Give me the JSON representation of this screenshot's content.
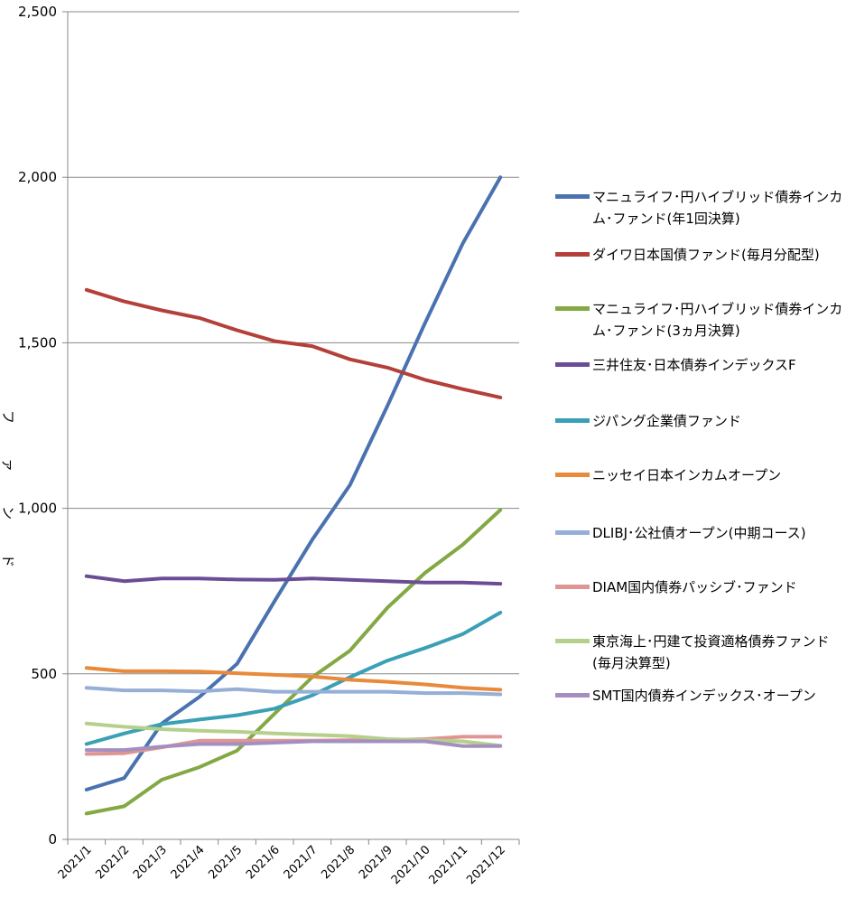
{
  "chart_data": {
    "type": "line",
    "title": "",
    "xlabel": "",
    "ylabel": "ファンド",
    "ylim": [
      0,
      2500
    ],
    "yticks": [
      0,
      500,
      1000,
      1500,
      2000,
      2500
    ],
    "ytick_labels": [
      "0",
      "500",
      "1,000",
      "1,500",
      "2,000",
      "2,500"
    ],
    "grid": "horizontal",
    "legend_position": "right",
    "categories": [
      "2021/1",
      "2021/2",
      "2021/3",
      "2021/4",
      "2021/5",
      "2021/6",
      "2021/7",
      "2021/8",
      "2021/9",
      "2021/10",
      "2021/11",
      "2021/12"
    ],
    "series": [
      {
        "name": "マニュライフ･円ハイブリッド債券インカム･ファンド(年1回決算)",
        "color": "#4a72b0",
        "values": [
          150,
          185,
          350,
          430,
          530,
          720,
          905,
          1070,
          1310,
          1560,
          1800,
          2000
        ]
      },
      {
        "name": "ダイワ日本国債ファンド(毎月分配型)",
        "color": "#b5403a",
        "values": [
          1660,
          1625,
          1598,
          1575,
          1538,
          1505,
          1490,
          1450,
          1425,
          1388,
          1360,
          1335
        ]
      },
      {
        "name": "マニュライフ･円ハイブリッド債券インカム･ファンド(3ヵ月決算)",
        "color": "#83a844",
        "values": [
          78,
          100,
          180,
          218,
          268,
          380,
          490,
          570,
          700,
          805,
          890,
          995
        ]
      },
      {
        "name": "三井住友･日本債券インデックスF",
        "color": "#6b4d96",
        "values": [
          795,
          780,
          788,
          788,
          785,
          784,
          788,
          784,
          780,
          776,
          776,
          772
        ]
      },
      {
        "name": "ジパング企業債ファンド",
        "color": "#3aa0b5",
        "values": [
          288,
          320,
          348,
          362,
          375,
          395,
          435,
          490,
          540,
          578,
          620,
          685
        ]
      },
      {
        "name": "ニッセイ日本インカムオープン",
        "color": "#e88a3a",
        "values": [
          518,
          508,
          508,
          507,
          502,
          497,
          492,
          482,
          476,
          468,
          458,
          452
        ]
      },
      {
        "name": "DLIBJ･公社債オープン(中期コース)",
        "color": "#95afd6",
        "values": [
          458,
          450,
          450,
          447,
          454,
          446,
          446,
          446,
          446,
          442,
          442,
          438
        ]
      },
      {
        "name": "DIAM国内債券パッシブ･ファンド",
        "color": "#df9693",
        "values": [
          258,
          260,
          278,
          298,
          298,
          298,
          298,
          300,
          300,
          303,
          310,
          310
        ]
      },
      {
        "name": "東京海上･円建て投資適格債券ファンド(毎月決算型)",
        "color": "#b4d08b",
        "values": [
          350,
          340,
          333,
          328,
          325,
          320,
          316,
          312,
          303,
          300,
          296,
          283
        ]
      },
      {
        "name": "SMT国内債券インデックス･オープン",
        "color": "#a58fc0",
        "values": [
          270,
          270,
          280,
          288,
          288,
          292,
          296,
          296,
          296,
          296,
          282,
          282
        ]
      }
    ]
  }
}
